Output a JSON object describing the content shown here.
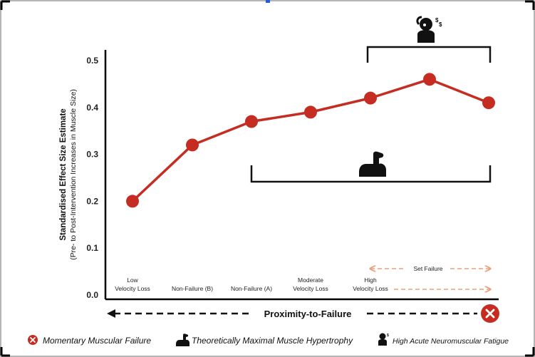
{
  "chart_data": {
    "type": "line",
    "categories": [
      "Low\nVelocity Loss",
      "Non-Failure (B)",
      "Non-Failure (A)",
      "Moderate\nVelocity Loss",
      "High\nVelocity Loss",
      "",
      ""
    ],
    "values": [
      0.2,
      0.32,
      0.37,
      0.39,
      0.42,
      0.46,
      0.41
    ],
    "ylim": [
      0.0,
      0.5
    ],
    "yticks": [
      "0.0",
      "0.1",
      "0.2",
      "0.3",
      "0.4",
      "0.5"
    ],
    "ylabel": "Standardised Effect Size Estimate",
    "ylabel_sub": "(Pre- to Post-Intervention Increases in Muscle Size)",
    "xlabel": "Proximity-to-Failure",
    "annotations": {
      "set_failure": "Set Failure"
    },
    "line_color": "#c62d22",
    "arrow_color": "#e9a07c"
  },
  "legend": [
    {
      "icon": "x-circle-icon",
      "label": "Momentary Muscular Failure"
    },
    {
      "icon": "flexed-arm-icon",
      "label": "Theoretically Maximal Muscle Hypertrophy"
    },
    {
      "icon": "stressed-head-icon",
      "label": "High Acute Neuromuscular Fatigue"
    }
  ]
}
